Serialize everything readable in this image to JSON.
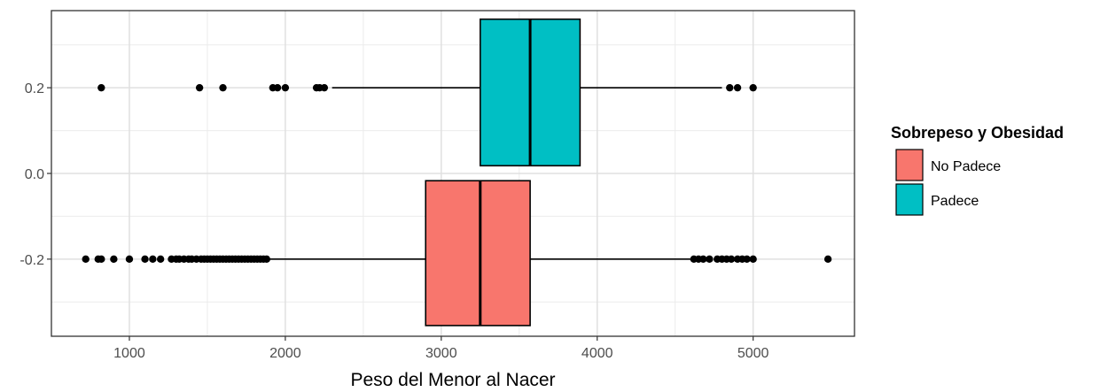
{
  "chart_data": {
    "type": "boxplot",
    "orientation": "horizontal",
    "title": "",
    "xlabel": "Peso del Menor al Nacer",
    "ylabel": "",
    "xlim": [
      500,
      5650
    ],
    "ylim": [
      -0.38,
      0.38
    ],
    "x_ticks": [
      1000,
      2000,
      3000,
      4000,
      5000
    ],
    "x_tick_labels": [
      "1000",
      "2000",
      "3000",
      "4000",
      "5000"
    ],
    "y_ticks": [
      0.2,
      0.0,
      -0.2
    ],
    "y_tick_labels": [
      "0.2",
      "0.0",
      "-0.2"
    ],
    "grid": true,
    "theme": "bw",
    "legend": {
      "title": "Sobrepeso y Obesidad",
      "position": "right",
      "items": [
        {
          "label": "No Padece",
          "color": "#F8766D"
        },
        {
          "label": "Padece",
          "color": "#00BFC4"
        }
      ]
    },
    "series": [
      {
        "name": "No Padece",
        "color": "#F8766D",
        "y_center": -0.2,
        "box_y_range": [
          -0.355,
          -0.017
        ],
        "whisker_low": 1900,
        "q1": 2900,
        "median": 3250,
        "q3": 3570,
        "whisker_high": 4600,
        "outliers": [
          720,
          800,
          820,
          900,
          1000,
          1100,
          1150,
          1200,
          1270,
          1300,
          1320,
          1350,
          1380,
          1400,
          1430,
          1460,
          1480,
          1500,
          1520,
          1540,
          1560,
          1580,
          1600,
          1620,
          1640,
          1660,
          1680,
          1700,
          1720,
          1740,
          1760,
          1780,
          1800,
          1820,
          1840,
          1860,
          1880,
          4620,
          4650,
          4680,
          4720,
          4770,
          4800,
          4830,
          4860,
          4900,
          4930,
          4960,
          5000,
          5480
        ]
      },
      {
        "name": "Padece",
        "color": "#00BFC4",
        "y_center": 0.2,
        "box_y_range": [
          0.018,
          0.36
        ],
        "whisker_low": 2300,
        "q1": 3250,
        "median": 3570,
        "q3": 3890,
        "whisker_high": 4800,
        "outliers": [
          820,
          1450,
          1600,
          1920,
          1950,
          2000,
          2200,
          2220,
          2250,
          4850,
          4900,
          5000
        ]
      }
    ]
  }
}
